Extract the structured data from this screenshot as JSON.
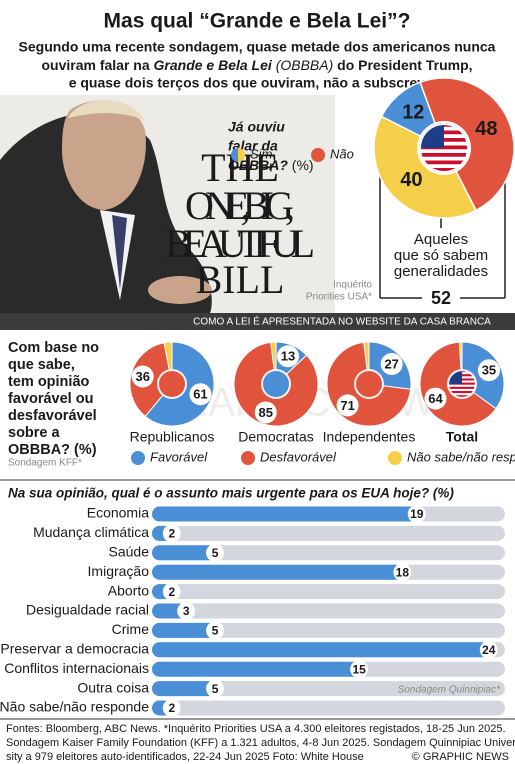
{
  "header": {
    "title": "Mas qual “Grande e Bela Lei”?",
    "subtitle": [
      "Segundo uma recente sondagem, quase metade dos americanos nunca",
      "ouviram falar na",
      "Grande e Bela Lei",
      "(OBBBA)",
      "do President Trump,",
      "e quase dois terços dos que ouviram, não a subscrevem"
    ]
  },
  "photo": {
    "book_title": [
      "THE",
      "ONE, BIG,",
      "BEAUTIFUL",
      "BILL"
    ],
    "caption": "COMO A LEI É APRESENTADA NO WEBSITE DA CASA BRANCA"
  },
  "chart_data": [
    {
      "type": "pie",
      "question": [
        "Já ouviu",
        "falar da",
        "OBBBA?"
      ],
      "unit": "(%)",
      "legend": [
        {
          "name": "Sim",
          "colors": [
            "#4a8fd6",
            "#f5cf4a"
          ]
        },
        {
          "name": "Não",
          "colors": [
            "#e0533c"
          ]
        }
      ],
      "values": [
        48,
        40,
        12
      ],
      "colors": [
        "#e0533c",
        "#f5cf4a",
        "#4a8fd6"
      ],
      "annotation": [
        "Aqueles",
        "que só sabem",
        "generalidades"
      ],
      "total": 52,
      "source": [
        "Inquérito",
        "Priorities USA*"
      ]
    },
    {
      "type": "pie",
      "question": [
        "Com base no",
        "que sabe,",
        "tem opinião",
        "favorável ou",
        "desfavorável",
        "sobre a",
        "OBBBA? (%)"
      ],
      "categories": [
        "Republicanos",
        "Democratas",
        "Independentes",
        "Total"
      ],
      "series": [
        {
          "name": "Favorável",
          "color": "#4a8fd6",
          "values": [
            61,
            13,
            27,
            35
          ]
        },
        {
          "name": "Desfavorável",
          "color": "#e0533c",
          "values": [
            36,
            85,
            71,
            64
          ]
        },
        {
          "name": "Não sabe/não responde",
          "color": "#f5cf4a",
          "values": [
            3,
            2,
            2,
            1
          ]
        }
      ],
      "source": "Sondagem KFF*",
      "watermark": "GRAPHIC NEWS"
    },
    {
      "type": "bar",
      "orientation": "horizontal",
      "title": "Na sua opinião, qual é o assunto mais urgente para os EUA hoje? (%)",
      "categories": [
        "Economia",
        "Mudança climática",
        "Saúde",
        "Imigração",
        "Aborto",
        "Desigualdade racial",
        "Crime",
        "Preservar a democracia",
        "Conflitos internacionais",
        "Outra coisa",
        "Não sabe/não responde"
      ],
      "values": [
        19,
        2,
        5,
        18,
        2,
        3,
        5,
        24,
        15,
        5,
        2
      ],
      "color": "#4a8fd6",
      "xlim": [
        0,
        24.5
      ],
      "source": "Sondagem Quinnipiac*"
    }
  ],
  "footer": {
    "lines": [
      "Fontes: Bloomberg, ABC News. *Inquérito Priorities USA a 4.300 eleitores registados, 18-25 Jun 2025.",
      "Sondagem Kaiser Family Foundation (KFF) a 1.321 adultos, 4-8 Jun 2025. Sondagem Quinnipiac Univer-",
      "sity a 979 eleitores auto-identificados, 22-24 Jun 2025   Foto: White House"
    ],
    "credit": "© GRAPHIC NEWS"
  }
}
